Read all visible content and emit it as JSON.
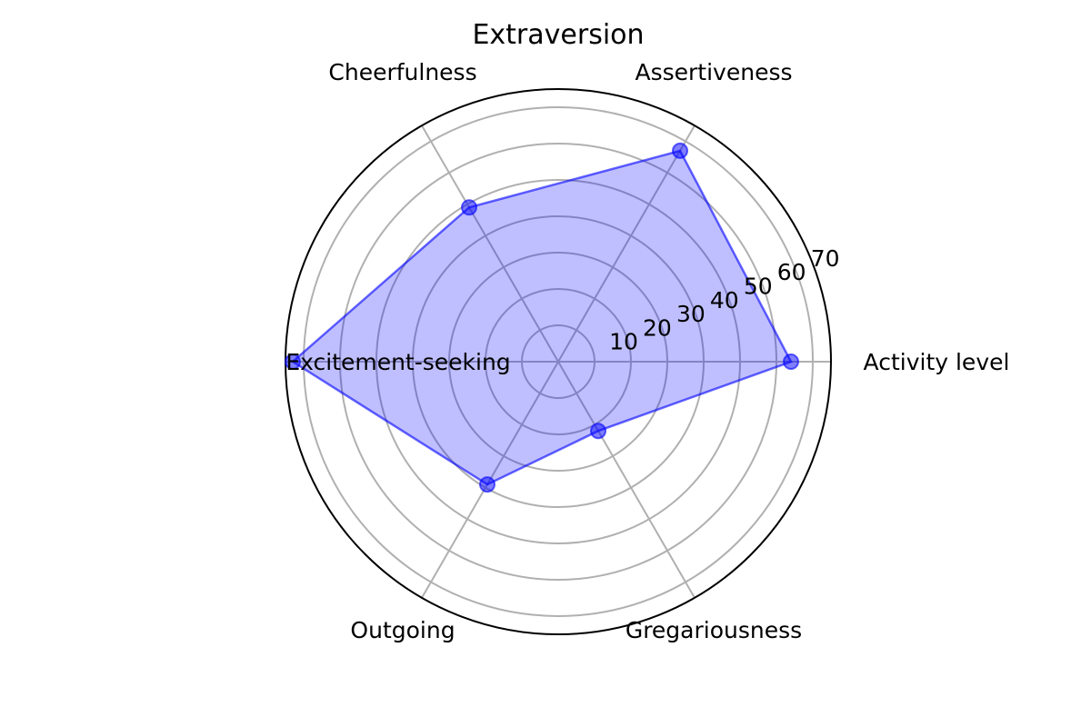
{
  "chart_data": {
    "type": "radar",
    "title": "Extraversion",
    "categories": [
      "Activity level",
      "Assertiveness",
      "Cheerfulness",
      "Excitement-seeking",
      "Outgoing",
      "Gregariousness"
    ],
    "series": [
      {
        "values": [
          64,
          67,
          49,
          73,
          39,
          22
        ],
        "color": "#0000ff"
      }
    ],
    "rlim": [
      0,
      75
    ],
    "rticks": [
      10,
      20,
      30,
      40,
      50,
      60,
      70
    ],
    "grid": true
  }
}
